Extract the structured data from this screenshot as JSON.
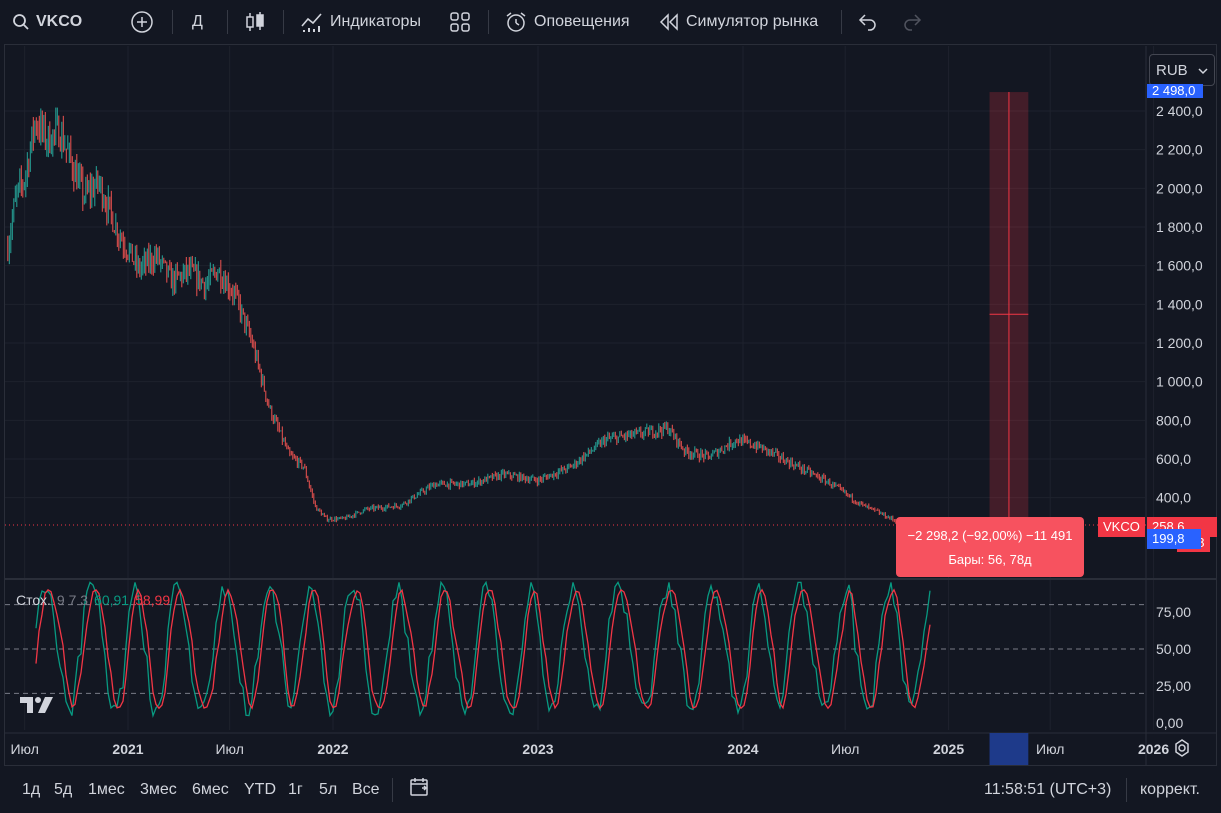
{
  "toolbar": {
    "symbol": "VKCO",
    "interval": "Д",
    "indicators": "Индикаторы",
    "alerts": "Оповещения",
    "replay": "Симулятор рынка"
  },
  "currency": "RUB",
  "price_axis": {
    "labels": [
      "2 400,0",
      "2 200,0",
      "2 000,0",
      "1 800,0",
      "1 600,0",
      "1 400,0",
      "1 200,0",
      "1 000,0",
      "800,0",
      "600,0",
      "400,0"
    ],
    "top_tag": "2 498,0",
    "last_tag": "258,6",
    "cursor_tag": "199,8",
    "cursor_tag_suffix": "08",
    "symbol_tag": "VKCO"
  },
  "measure": {
    "line1": "−2 298,2 (−92,00%) −11 491",
    "line2": "Бары: 56, 78д"
  },
  "stochastic": {
    "name": "Стох.",
    "params": "9 7 3",
    "k_value": "60,91",
    "d_value": "58,99",
    "axis": [
      "75,00",
      "50,00",
      "25,00",
      "0,00"
    ]
  },
  "time_axis": [
    "Июл",
    "2021",
    "Июл",
    "2022",
    "2023",
    "2024",
    "Июл",
    "2025",
    "Июл",
    "2026"
  ],
  "ranges": [
    "1д",
    "5д",
    "1мес",
    "3мес",
    "6мес",
    "YTD",
    "1г",
    "5л",
    "Все"
  ],
  "clock": "11:58:51 (UTC+3)",
  "adjust": "коррект.",
  "colors": {
    "up": "#26a69a",
    "down": "#ef5350",
    "k": "#089981",
    "d": "#f23645",
    "accent": "#2962ff",
    "bg": "#131722"
  },
  "chart_data": {
    "type": "candlestick",
    "ylim": [
      0,
      2560
    ],
    "price_path": [
      {
        "date": "2020-06-01",
        "value": 1700
      },
      {
        "date": "2020-06-15",
        "value": 1950
      },
      {
        "date": "2020-07-01",
        "value": 2050
      },
      {
        "date": "2020-07-20",
        "value": 2350
      },
      {
        "date": "2020-08-10",
        "value": 2250
      },
      {
        "date": "2020-09-01",
        "value": 2300
      },
      {
        "date": "2020-09-20",
        "value": 2150
      },
      {
        "date": "2020-10-15",
        "value": 1960
      },
      {
        "date": "2020-11-10",
        "value": 2030
      },
      {
        "date": "2020-12-10",
        "value": 1800
      },
      {
        "date": "2021-01-20",
        "value": 1580
      },
      {
        "date": "2021-02-20",
        "value": 1650
      },
      {
        "date": "2021-03-20",
        "value": 1520
      },
      {
        "date": "2021-04-20",
        "value": 1570
      },
      {
        "date": "2021-05-20",
        "value": 1500
      },
      {
        "date": "2021-06-10",
        "value": 1580
      },
      {
        "date": "2021-07-10",
        "value": 1450
      },
      {
        "date": "2021-08-10",
        "value": 1200
      },
      {
        "date": "2021-09-10",
        "value": 860
      },
      {
        "date": "2021-10-15",
        "value": 620
      },
      {
        "date": "2021-11-10",
        "value": 560
      },
      {
        "date": "2021-12-01",
        "value": 350
      },
      {
        "date": "2021-12-20",
        "value": 290
      },
      {
        "date": "2022-01-20",
        "value": 290
      },
      {
        "date": "2022-03-01",
        "value": 340
      },
      {
        "date": "2022-05-01",
        "value": 360
      },
      {
        "date": "2022-07-01",
        "value": 470
      },
      {
        "date": "2022-09-01",
        "value": 470
      },
      {
        "date": "2022-11-01",
        "value": 520
      },
      {
        "date": "2023-01-01",
        "value": 490
      },
      {
        "date": "2023-03-01",
        "value": 560
      },
      {
        "date": "2023-05-01",
        "value": 700
      },
      {
        "date": "2023-07-01",
        "value": 730
      },
      {
        "date": "2023-08-20",
        "value": 760
      },
      {
        "date": "2023-09-20",
        "value": 640
      },
      {
        "date": "2023-11-01",
        "value": 610
      },
      {
        "date": "2023-12-20",
        "value": 700
      },
      {
        "date": "2024-02-01",
        "value": 660
      },
      {
        "date": "2024-04-01",
        "value": 570
      },
      {
        "date": "2024-06-01",
        "value": 480
      },
      {
        "date": "2024-08-01",
        "value": 360
      },
      {
        "date": "2024-09-15",
        "value": 300
      },
      {
        "date": "2024-10-25",
        "value": 240
      },
      {
        "date": "2024-11-20",
        "value": 260
      }
    ],
    "measure_range": {
      "from": 2498.0,
      "to": 199.8
    },
    "last_price": 258.6,
    "stochastic_ylim": [
      0,
      100
    ],
    "stochastic_levels": [
      80,
      50,
      20
    ]
  }
}
